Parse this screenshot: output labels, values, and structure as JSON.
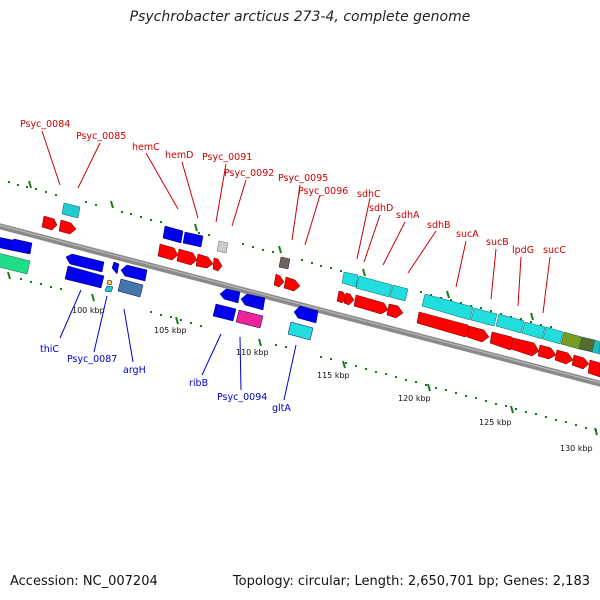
{
  "title": "Psychrobacter arcticus 273-4, complete genome",
  "footer": {
    "accession": "Accession: NC_007204",
    "topology": "Topology: circular; Length: 2,650,701 bp; Genes: 2,183"
  },
  "colors": {
    "forward_label": "#cc0000",
    "reverse_label": "#0000cc",
    "backbone": "#8a8a8a",
    "tick": "#1a7a1a"
  },
  "scale_labels": [
    "100 kbp",
    "105 kbp",
    "110 kbp",
    "115 kbp",
    "120 kbp",
    "125 kbp",
    "130 kbp"
  ],
  "top_labels": [
    "Psyc_0084",
    "Psyc_0085",
    "hemC",
    "hemD",
    "Psyc_0091",
    "Psyc_0092",
    "Psyc_0095",
    "Psyc_0096",
    "sdhC",
    "sdhD",
    "sdhA",
    "sdhB",
    "sucA",
    "sucB",
    "lpdG",
    "sucC"
  ],
  "bottom_labels": [
    "thiC",
    "Psyc_0087",
    "argH",
    "ribB",
    "Psyc_0094",
    "gltA"
  ]
}
